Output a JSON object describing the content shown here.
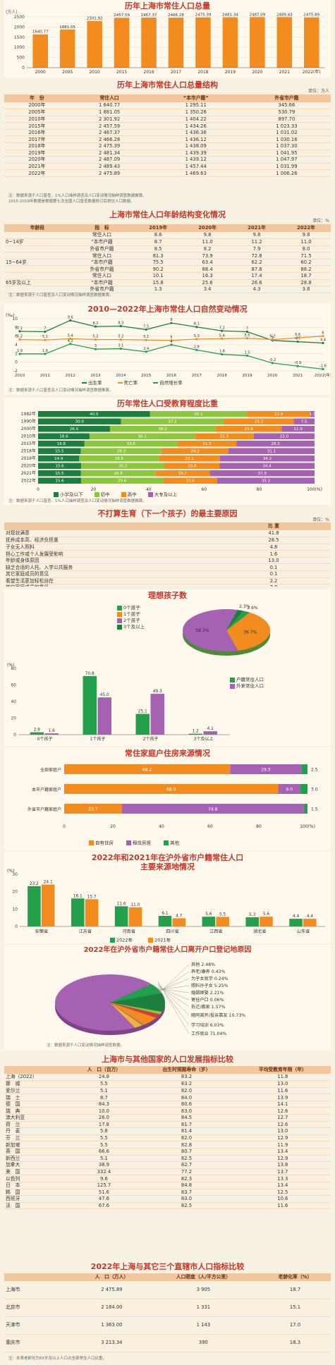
{
  "colors": {
    "orange": "#f28c1f",
    "green": "#22a04b",
    "purple": "#a561b2",
    "lightgreen": "#8cc63f",
    "red": "#d93b3b",
    "darkgreen": "#1d7f3d",
    "title": "#c0392b"
  },
  "total": {
    "title": "历年上海市常住人口总量",
    "unit": "万人",
    "ylabel": "(万人)",
    "chart_data": {
      "type": "bar",
      "categories": [
        "2000",
        "2005",
        "2010",
        "2015",
        "2016",
        "2017",
        "2018",
        "2019",
        "2020",
        "2021",
        "2022(年)"
      ],
      "values": [
        1640.77,
        1881.05,
        2301.92,
        2457.59,
        2467.37,
        2466.28,
        2475.39,
        2481.34,
        2487.09,
        2489.43,
        2475.89
      ],
      "labels": [
        "1640.77",
        "1881.05",
        "2301.92",
        "2457.59",
        "2467.37",
        "2466.28",
        "2475.39",
        "2481.34",
        "2487.09",
        "2489.43",
        "2475.89"
      ],
      "yticks": [
        "0",
        "500",
        "1000",
        "1500",
        "2000",
        "2500"
      ],
      "ylim": [
        0,
        2500
      ]
    }
  },
  "structure": {
    "title": "历年上海市常住人口总量结构",
    "unit": "单位：万人",
    "headers": [
      "年　份",
      "常住人口",
      "“本市户籍”",
      "外省市户籍"
    ],
    "rows": [
      [
        "2000年",
        "1 640.77",
        "1 295.11",
        "345.66"
      ],
      [
        "2005年",
        "1 881.05",
        "1 350.26",
        "530.79"
      ],
      [
        "2010年",
        "2 301.92",
        "1 404.22",
        "897.70"
      ],
      [
        "2015年",
        "2 457.59",
        "1 434.26",
        "1 023.33"
      ],
      [
        "2016年",
        "2 467.37",
        "1 436.36",
        "1 031.02"
      ],
      [
        "2017年",
        "2 466.28",
        "1 436.12",
        "1 030.16"
      ],
      [
        "2018年",
        "2 475.39",
        "1 438.09",
        "1 037.30"
      ],
      [
        "2019年",
        "2 481.34",
        "1 439.39",
        "1 041.95"
      ],
      [
        "2020年",
        "2 487.09",
        "1 439.12",
        "1 047.97"
      ],
      [
        "2021年",
        "2 489.43",
        "1 457.44",
        "1 031.99"
      ],
      [
        "2022年",
        "2 475.89",
        "1 469.63",
        "1 006.26"
      ]
    ],
    "note": "注：数据来源于人口普查、1%人口抽样调查及人口变动情况抽样调查数据推算。",
    "note2": "2015-2019年数据是根据第七次全国人口普查数据修订后常住人口数据。"
  },
  "age": {
    "title": "上海市常住人口年龄结构变化情况",
    "unit": "单位：%",
    "headers": [
      "年龄段",
      "指　标",
      "2019年",
      "2020年",
      "2021年",
      "2022年"
    ],
    "groups": [
      "0~14岁",
      "15~64岁",
      "65岁及以上"
    ],
    "rows": [
      [
        "常住人口",
        "8.6",
        "9.8",
        "9.8",
        "9.8"
      ],
      [
        "“本市户籍",
        "8.7",
        "11.0",
        "11.2",
        "11.0"
      ],
      [
        "外省市户籍",
        "8.5",
        "8.2",
        "7.9",
        "8.0"
      ],
      [
        "常住人口",
        "81.3",
        "73.9",
        "72.8",
        "71.5"
      ],
      [
        "“本市户籍",
        "75.5",
        "63.4",
        "62.2",
        "60.2"
      ],
      [
        "外省市户籍",
        "90.2",
        "88.4",
        "87.8",
        "88.2"
      ],
      [
        "常住人口",
        "10.1",
        "16.3",
        "17.4",
        "18.7"
      ],
      [
        "“本市户籍",
        "15.8",
        "25.6",
        "26.6",
        "28.8"
      ],
      [
        "外省市户籍",
        "1.3",
        "3.4",
        "4.3",
        "3.8"
      ]
    ],
    "note": "注：数据来源于人口普查及人口变动情况抽样调查数据推算。"
  },
  "natural": {
    "title": "2010—2022年上海市常住人口自然变动情况",
    "ylabel": "(‰)",
    "legend": [
      "出生率",
      "死亡率",
      "自然增长率"
    ],
    "chart_data": {
      "type": "line",
      "x": [
        "2010",
        "2011",
        "2012",
        "2013",
        "2014",
        "2015",
        "2016",
        "2017",
        "2018",
        "2019",
        "2020",
        "2021",
        "2022(年)"
      ],
      "series": [
        {
          "name": "出生率",
          "values": [
            7.1,
            7.0,
            9.6,
            8.2,
            8.3,
            7.5,
            9.0,
            8.1,
            7.2,
            7.0,
            5.0,
            4.7,
            4.4
          ]
        },
        {
          "name": "死亡率",
          "values": [
            5.2,
            5.1,
            5.4,
            5.2,
            5.2,
            5.1,
            5.0,
            5.3,
            5.4,
            5.5,
            5.2,
            5.6,
            6.0
          ]
        },
        {
          "name": "自然增长率",
          "values": [
            1.9,
            1.9,
            4.2,
            3.0,
            3.1,
            2.4,
            4.0,
            2.8,
            1.8,
            1.5,
            -0.2,
            -0.9,
            -1.6
          ]
        }
      ],
      "yticks": [
        "-2",
        "0",
        "2",
        "4",
        "6",
        "8",
        "10"
      ],
      "ylim": [
        -2,
        10
      ]
    },
    "note": "注：数据来源于人口普查及人口变动情况抽样调查数据推算。"
  },
  "education": {
    "title": "历年常住人口受教育程度比重",
    "legend": [
      "小学及以下",
      "初中",
      "高中",
      "大专及以上"
    ],
    "xticks": [
      "0",
      "20",
      "40",
      "60",
      "80",
      "100(%)"
    ],
    "chart_data": {
      "type": "bar",
      "categories": [
        "1982年",
        "1990年",
        "2000年",
        "2010年",
        "2015年",
        "2018年",
        "2019年",
        "2020年",
        "2021年",
        "2022年"
      ],
      "series": [
        {
          "name": "小学及以下",
          "values": [
            40.5,
            30.0,
            26.0,
            18.6,
            16.8,
            15.5,
            14.9,
            15.6,
            15.5,
            15.6
          ]
        },
        {
          "name": "初中",
          "values": [
            35.1,
            37.2,
            38.2,
            38.1,
            33.6,
            29.2,
            28.8,
            30.2,
            26.9,
            29.6
          ]
        },
        {
          "name": "高中",
          "values": [
            22.9,
            25.3,
            23.9,
            21.3,
            21.3,
            24.2,
            22.1,
            19.8,
            19.7,
            19.6
          ]
        },
        {
          "name": "大专及以上",
          "values": [
            1.5,
            7.5,
            11.9,
            22.0,
            28.3,
            31.1,
            34.2,
            34.4,
            37.9,
            35.2
          ]
        }
      ],
      "labels": [
        [
          "40.5",
          "35.1",
          "22.9",
          "1.5"
        ],
        [
          "30.0",
          "37.2",
          "25.3",
          "7.5"
        ],
        [
          "26.0",
          "38.2",
          "23.9",
          "11.9"
        ],
        [
          "18.6",
          "38.1",
          "21.3",
          "22.0"
        ],
        [
          "16.8",
          "33.6",
          "21.3",
          "28.3"
        ],
        [
          "15.5",
          "29.2",
          "24.2",
          "31.1"
        ],
        [
          "14.9",
          "28.8",
          "22.1",
          "34.2"
        ],
        [
          "15.6",
          "30.2",
          "19.8",
          "34.4"
        ],
        [
          "15.5",
          "26.9",
          "19.7",
          "37.9"
        ],
        [
          "15.6",
          "29.6",
          "19.6",
          "35.2"
        ]
      ]
    },
    "note": "注：数据来源于人口普查、1%人口抽样调查及人口变动情况抽样调查数据推算。"
  },
  "reasons": {
    "title": "不打算生育（下一个孩子）的最主要原因",
    "unit": "单位：%",
    "header": "比 重",
    "rows": [
      [
        "对现状满意",
        "41.8"
      ],
      [
        "抚养成本高、经济负担重",
        "28.5"
      ],
      [
        "子女无人照料",
        "4.8"
      ],
      [
        "担心工作或个人发展受影响",
        "1.6"
      ],
      [
        "年龄或身体原因",
        "13.0"
      ],
      [
        "缺乏合适的人托、入学公共服务",
        "0.1"
      ],
      [
        "其它家庭成员的意见",
        "0.1"
      ],
      [
        "看望生活更加轻松自在",
        "2.2"
      ],
      [
        "其它家庭成员的意见",
        "7.8"
      ]
    ]
  },
  "ideal": {
    "title": "理想孩子数",
    "legend": [
      "0个孩子",
      "1个孩子",
      "2个孩子",
      "3个及以上"
    ],
    "pie": {
      "type": "pie",
      "categories": [
        "0个孩子",
        "1个孩子",
        "2个孩子",
        "3个及以上"
      ],
      "values": [
        2.6,
        36.7,
        58.3,
        2.3
      ],
      "labels": [
        "2.6%",
        "36.7%",
        "58.3%",
        "2.3%"
      ]
    },
    "ylabel": "(%)",
    "bar_legend": [
      "户籍常住人口",
      "外来常住人口"
    ],
    "chart_data": {
      "type": "bar",
      "categories": [
        "0个孩子",
        "1个孩子",
        "2个孩子",
        "3个及以上"
      ],
      "series": [
        {
          "name": "户籍常住人口",
          "values": [
            2.9,
            70.8,
            25.1,
            1.2
          ]
        },
        {
          "name": "外来常住人口",
          "values": [
            1.6,
            45.0,
            49.3,
            4.1
          ]
        }
      ],
      "labels": [
        [
          "2.9",
          "70.8",
          "25.1",
          "1.2"
        ],
        [
          "1.6",
          "45.0",
          "49.3",
          "4.1"
        ]
      ],
      "ylim": [
        0,
        80
      ]
    }
  },
  "housing": {
    "title": "常住家庭户住房来源情况",
    "legend": [
      "自有住房",
      "租住房屋",
      "其他"
    ],
    "xticks": [
      "0",
      "20",
      "40",
      "60",
      "80",
      "100(%)"
    ],
    "chart_data": {
      "type": "bar",
      "categories": [
        "全部家庭户",
        "本市户籍家庭户",
        "外省市户籍家庭户"
      ],
      "series": [
        {
          "name": "自有住房",
          "values": [
            68.2,
            88.0,
            23.7
          ]
        },
        {
          "name": "租住房屋",
          "values": [
            29.3,
            9.0,
            74.8
          ]
        },
        {
          "name": "其他",
          "values": [
            2.5,
            3.0,
            1.5
          ]
        }
      ],
      "labels": [
        [
          "68.2",
          "29.3",
          "2.5"
        ],
        [
          "88.0",
          "9.0",
          "3.0"
        ],
        [
          "23.7",
          "74.8",
          "1.5"
        ]
      ]
    }
  },
  "sources": {
    "title": "2022年和2021年在沪外省市户籍常住人口",
    "title2": "主要来源地情况",
    "ylabel": "(%)",
    "legend": [
      "2022年",
      "2021年"
    ],
    "chart_data": {
      "type": "bar",
      "categories": [
        "安徽省",
        "江苏省",
        "河南省",
        "四川省",
        "江西省",
        "湖北省",
        "山东省"
      ],
      "series": [
        {
          "name": "2022年",
          "values": [
            23.2,
            16.1,
            11.6,
            6.1,
            5.6,
            5.3,
            4.4
          ]
        },
        {
          "name": "2021年",
          "values": [
            24.1,
            15.7,
            11.0,
            4.7,
            5.5,
            5.6,
            4.4
          ]
        }
      ],
      "labels": [
        [
          "23.2",
          "16.1",
          "11.6",
          "6.1",
          "5.6",
          "5.3",
          "4.4"
        ],
        [
          "24.1",
          "15.7",
          "11.0",
          "4.7",
          "5.5",
          "5.6",
          "4.4"
        ]
      ],
      "ylim": [
        0,
        30
      ],
      "yticks": [
        "0",
        "10",
        "20",
        "30"
      ]
    }
  },
  "reason2": {
    "title": "2022年在沪外省市户籍常住人口离开户口登记地原因",
    "chart_data": {
      "type": "pie",
      "categories": [
        "工作就业",
        "学习培训",
        "随同离开/投亲靠友",
        "拆迁/搬家",
        "寄挂户口",
        "婚姻嫁娶",
        "照料孙子女",
        "为子女就学",
        "养老/康养",
        "其他"
      ],
      "values": [
        71.04,
        6.03,
        10.73,
        1.57,
        0.06,
        2.21,
        5.25,
        0.24,
        0.43,
        2.48
      ],
      "labels": [
        "工作就业 71.04%",
        "学习培训 6.03%",
        "随同离开/投亲靠友 10.73%",
        "拆迁/搬家 1.57%",
        "寄挂户口 0.06%",
        "婚姻嫁娶 2.21%",
        "照料孙子女 5.25%",
        "为子女就学 0.24%",
        "养老/康养 0.43%",
        "其他 2.48%"
      ]
    },
    "note": "注：数据来源于人口变动情况抽样调查数据。"
  },
  "intl": {
    "title": "上海市与其他国家的人口发展指标比较",
    "headers": [
      "人　口（百万）",
      "出生时预期寿命（岁）",
      "平均受教育年限（年）"
    ],
    "rows": [
      [
        "上海（2022）",
        "24.8",
        "83.2",
        "11.8"
      ],
      [
        "挪　威",
        "5.5",
        "83.2",
        "13.0"
      ],
      [
        "爱尔兰",
        "5.1",
        "82.0",
        "11.6"
      ],
      [
        "瑞　士",
        "8.7",
        "84.0",
        "13.9"
      ],
      [
        "德　国",
        "84.3",
        "80.6",
        "14.1"
      ],
      [
        "瑞　典",
        "10.0",
        "83.0",
        "12.6"
      ],
      [
        "澳大利亚",
        "26.0",
        "84.5",
        "12.7"
      ],
      [
        "荷　兰",
        "17.8",
        "81.7",
        "12.6"
      ],
      [
        "丹　麦",
        "5.8",
        "81.4",
        "13.0"
      ],
      [
        "芬　兰",
        "5.5",
        "82.0",
        "12.9"
      ],
      [
        "新加坡",
        "5.5",
        "82.8",
        "11.9"
      ],
      [
        "英　国",
        "66.6",
        "80.7",
        "13.4"
      ],
      [
        "新西兰",
        "5.1",
        "82.5",
        "12.9"
      ],
      [
        "加拿大",
        "38.9",
        "82.7",
        "13.8"
      ],
      [
        "美　国",
        "332.4",
        "77.2",
        "13.7"
      ],
      [
        "以色列",
        "9.6",
        "82.3",
        "13.3"
      ],
      [
        "日　本",
        "125.7",
        "84.8",
        "13.4"
      ],
      [
        "韩　国",
        "51.6",
        "83.7",
        "12.5"
      ],
      [
        "西班牙",
        "47.6",
        "83.0",
        "10.6"
      ],
      [
        "法　国",
        "67.6",
        "82.5",
        "11.6"
      ]
    ]
  },
  "cities": {
    "title": "2022年上海与其它三个直辖市人口指标比较",
    "headers": [
      "人　口（万人）",
      "人口密度（人/平方公里）",
      "老龄化率（%）"
    ],
    "rows": [
      [
        "上海市",
        "2 475.89",
        "3 905",
        "18.7"
      ],
      [
        "北京市",
        "2 184.00",
        "1 331",
        "15.1"
      ],
      [
        "天津市",
        "1 363.00",
        "1 143",
        "17.0"
      ],
      [
        "重庆市",
        "3 213.34",
        "390",
        "18.3"
      ]
    ],
    "note": "注：本表老龄化为65岁及以上人口占全部常住人口比重。"
  }
}
